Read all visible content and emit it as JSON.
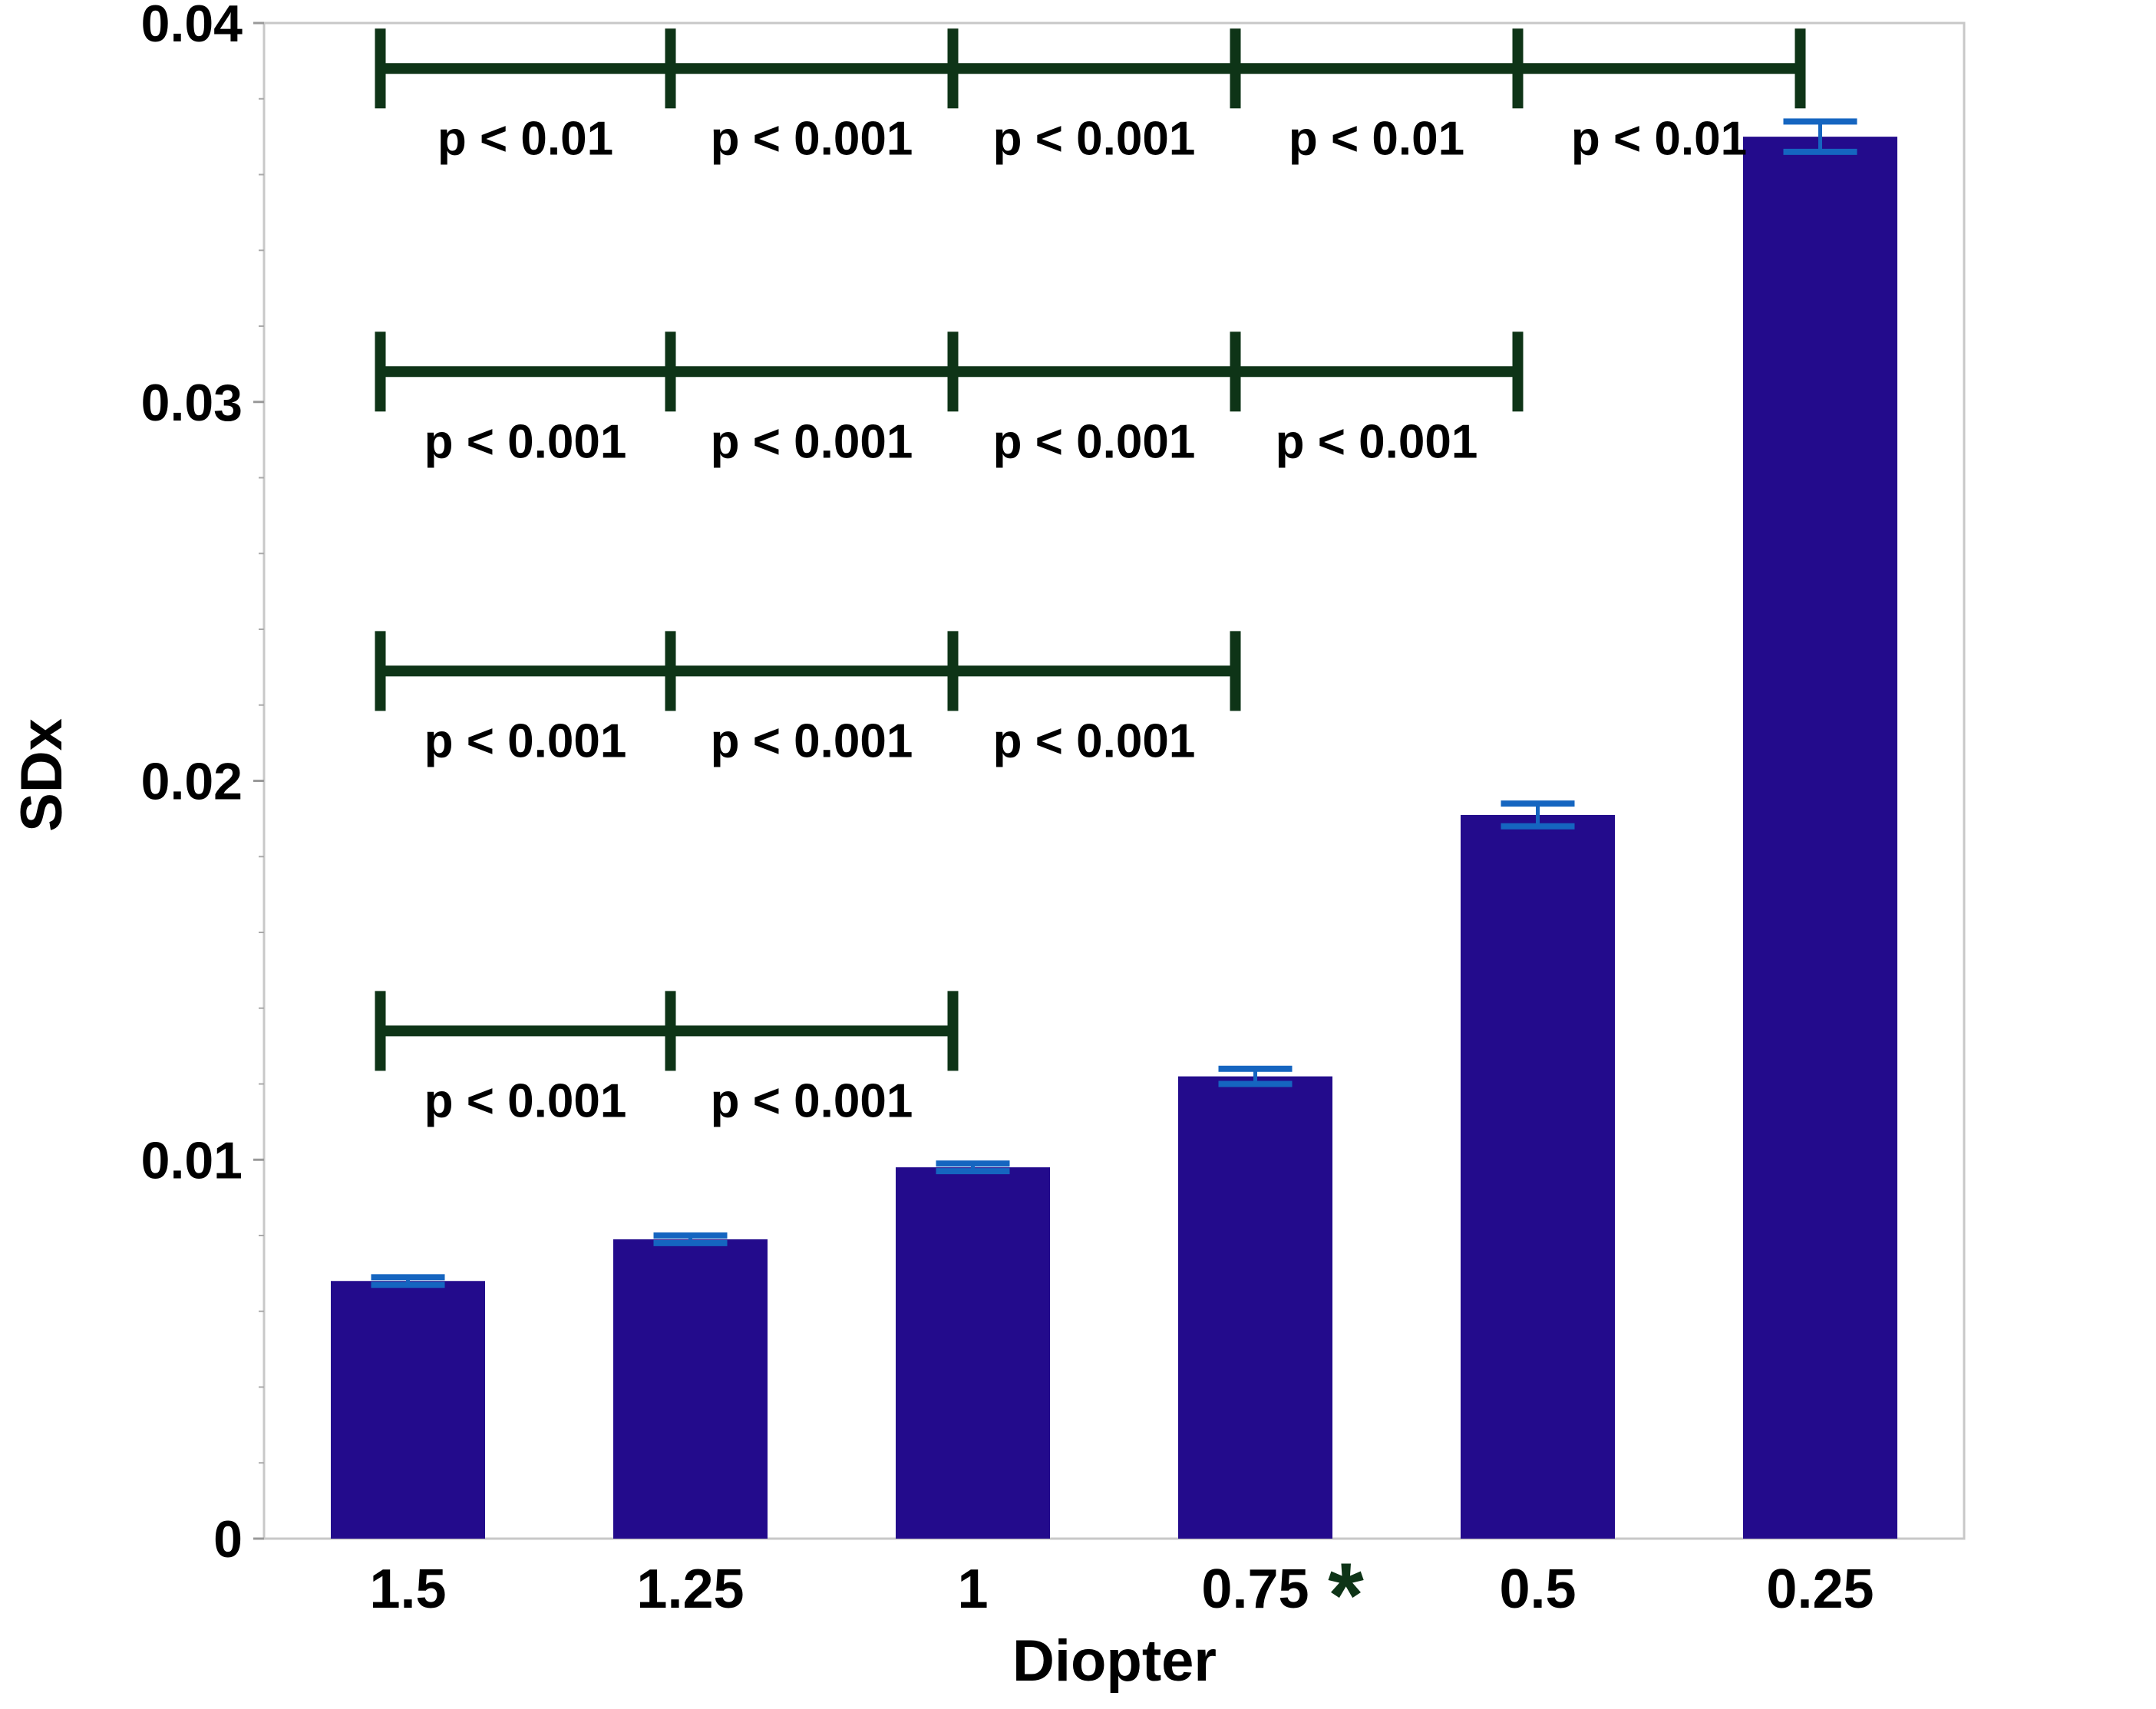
{
  "chart_data": {
    "type": "bar",
    "xlabel": "Diopter",
    "ylabel": "SDx",
    "ylim": [
      0,
      0.04
    ],
    "yticks": [
      0,
      0.01,
      0.02,
      0.03,
      0.04
    ],
    "ytick_labels": [
      "0",
      "0.01",
      "0.02",
      "0.03",
      "0.04"
    ],
    "minor_ticks_per_interval": 5,
    "grid": false,
    "categories": [
      "1.5",
      "1.25",
      "1",
      "0.75",
      "0.5",
      "0.25"
    ],
    "values": [
      0.0068,
      0.0079,
      0.0098,
      0.0122,
      0.0191,
      0.037
    ],
    "errors": [
      0.0001,
      0.0001,
      0.0001,
      0.0002,
      0.0003,
      0.0004
    ],
    "bar_color": "#230B8C",
    "error_color": "#1565C0",
    "bracket_color": "#0E3417",
    "annotations": [
      {
        "text": "*",
        "category_index": 3
      }
    ],
    "significance_rows": [
      {
        "y": 0.0388,
        "breaks": [
          0,
          1,
          2,
          3,
          4,
          5
        ],
        "labels": [
          "p < 0.01",
          "p < 0.001",
          "p < 0.001",
          "p < 0.01",
          "p < 0.01"
        ]
      },
      {
        "y": 0.0308,
        "breaks": [
          0,
          1,
          2,
          3,
          4
        ],
        "labels": [
          "p < 0.001",
          "p < 0.001",
          "p < 0.001",
          "p < 0.001"
        ]
      },
      {
        "y": 0.0229,
        "breaks": [
          0,
          1,
          2,
          3
        ],
        "labels": [
          "p < 0.001",
          "p < 0.001",
          "p < 0.001"
        ]
      },
      {
        "y": 0.0134,
        "breaks": [
          0,
          1,
          2
        ],
        "labels": [
          "p < 0.001",
          "p < 0.001"
        ]
      }
    ]
  }
}
